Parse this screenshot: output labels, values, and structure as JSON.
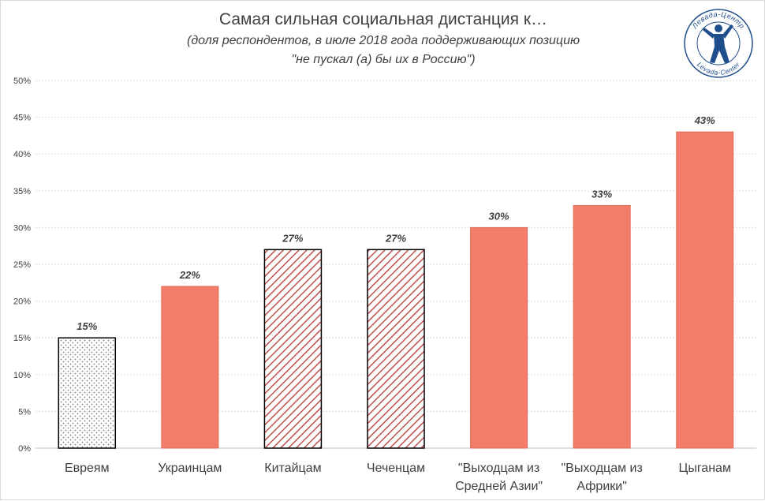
{
  "chart_data": {
    "type": "bar",
    "title": "Самая сильная социальная дистанция к…",
    "subtitle_lines": [
      "(доля респондентов, в июле 2018 года поддерживающих позицию",
      "\"не пускал (а) бы их в Россию\")"
    ],
    "categories": [
      [
        "Евреям"
      ],
      [
        "Украинцам"
      ],
      [
        "Китайцам"
      ],
      [
        "Чеченцам"
      ],
      [
        "\"Выходцам из",
        "Средней Азии\""
      ],
      [
        "\"Выходцам из",
        "Африки\""
      ],
      [
        "Цыганам"
      ]
    ],
    "values": [
      15,
      22,
      27,
      27,
      30,
      33,
      43
    ],
    "data_labels": [
      "15%",
      "22%",
      "27%",
      "27%",
      "30%",
      "33%",
      "43%"
    ],
    "bar_styles": [
      "dotted",
      "solid",
      "hatched",
      "hatched",
      "solid",
      "solid",
      "solid"
    ],
    "y_ticks": [
      "0%",
      "5%",
      "10%",
      "15%",
      "20%",
      "25%",
      "30%",
      "35%",
      "40%",
      "45%",
      "50%"
    ],
    "ylim": [
      0,
      50
    ],
    "y_step": 5,
    "grid": true,
    "legend": "none",
    "colors": {
      "bar_fill": "#f47c6a",
      "hatch": "#c0504d",
      "dots": "#7f7f7f",
      "outline": "#000000",
      "text": "#404040",
      "grid": "#d9d9d9",
      "logo": "#1f4e8c"
    }
  },
  "logo": {
    "text_top": "Левада-Центр",
    "text_bottom": "Levada-Center"
  }
}
